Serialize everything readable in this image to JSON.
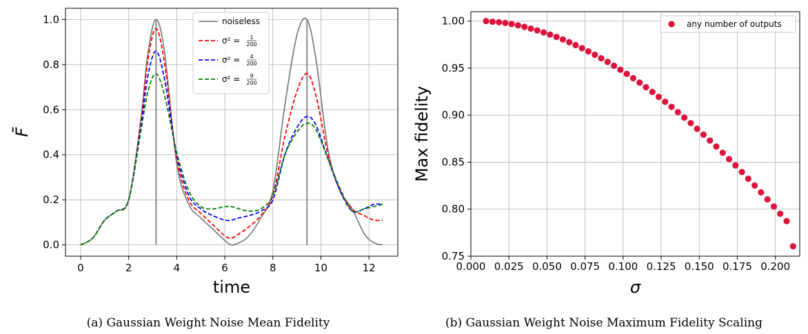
{
  "captions": {
    "a": "(a) Gaussian Weight Noise Mean Fidelity",
    "b": "(b) Gaussian Weight Noise Maximum Fidelity Scaling"
  },
  "chart_data": [
    {
      "type": "line",
      "xlabel": "time",
      "ylabel": "F̄",
      "xlim": [
        -0.63,
        13.2
      ],
      "ylim": [
        -0.05,
        1.05
      ],
      "xticks": [
        "0",
        "2",
        "4",
        "6",
        "8",
        "10",
        "12"
      ],
      "yticks": [
        "0.0",
        "0.2",
        "0.4",
        "0.6",
        "0.8",
        "1.0"
      ],
      "grid": true,
      "legend_position": "top-center",
      "vertical_lines_x": [
        3.14,
        9.42
      ],
      "series": [
        {
          "name": "noiseless",
          "style": "solid",
          "color": "#808080",
          "x": [
            0,
            0.5,
            1.0,
            1.5,
            2.0,
            2.5,
            2.8,
            3.14,
            3.5,
            4.0,
            4.5,
            5.0,
            5.5,
            6.0,
            6.28,
            6.6,
            7.0,
            7.5,
            8.0,
            8.5,
            9.0,
            9.42,
            9.8,
            10.3,
            10.8,
            11.3,
            11.8,
            12.2,
            12.57
          ],
          "y": [
            0,
            0.03,
            0.11,
            0.15,
            0.2,
            0.55,
            0.85,
            1.0,
            0.85,
            0.36,
            0.18,
            0.12,
            0.07,
            0.02,
            0.0,
            0.01,
            0.04,
            0.12,
            0.24,
            0.62,
            0.93,
            1.0,
            0.82,
            0.42,
            0.24,
            0.16,
            0.05,
            0.01,
            0.0
          ]
        },
        {
          "name": "σ² = 1/200",
          "name_fraction": {
            "num": "1",
            "den": "200"
          },
          "style": "dashed",
          "color": "#ff0000",
          "x": [
            0,
            0.5,
            1.0,
            1.5,
            2.0,
            2.5,
            2.8,
            3.14,
            3.5,
            4.0,
            4.5,
            5.0,
            5.5,
            6.0,
            6.28,
            6.6,
            7.0,
            7.5,
            8.0,
            8.5,
            9.0,
            9.42,
            9.8,
            10.3,
            10.8,
            11.3,
            11.8,
            12.2,
            12.57
          ],
          "y": [
            0,
            0.03,
            0.11,
            0.15,
            0.2,
            0.54,
            0.82,
            0.96,
            0.8,
            0.38,
            0.2,
            0.14,
            0.09,
            0.04,
            0.03,
            0.05,
            0.08,
            0.13,
            0.22,
            0.48,
            0.68,
            0.76,
            0.66,
            0.4,
            0.24,
            0.16,
            0.13,
            0.11,
            0.11
          ]
        },
        {
          "name": "σ² = 4/200",
          "name_fraction": {
            "num": "4",
            "den": "200"
          },
          "style": "dashed",
          "color": "#0000ff",
          "x": [
            0,
            0.5,
            1.0,
            1.5,
            2.0,
            2.5,
            2.8,
            3.14,
            3.5,
            4.0,
            4.5,
            5.0,
            5.5,
            6.0,
            6.28,
            6.6,
            7.0,
            7.5,
            8.0,
            8.5,
            9.0,
            9.42,
            9.8,
            10.3,
            10.8,
            11.3,
            11.8,
            12.2,
            12.57
          ],
          "y": [
            0,
            0.03,
            0.11,
            0.15,
            0.2,
            0.52,
            0.75,
            0.86,
            0.73,
            0.4,
            0.22,
            0.16,
            0.13,
            0.11,
            0.11,
            0.12,
            0.13,
            0.15,
            0.2,
            0.4,
            0.52,
            0.57,
            0.53,
            0.38,
            0.24,
            0.15,
            0.16,
            0.18,
            0.18
          ]
        },
        {
          "name": "σ² = 9/200",
          "name_fraction": {
            "num": "9",
            "den": "200"
          },
          "style": "dashed",
          "color": "#008000",
          "x": [
            0,
            0.5,
            1.0,
            1.5,
            2.0,
            2.5,
            2.8,
            3.14,
            3.5,
            4.0,
            4.5,
            5.0,
            5.5,
            6.0,
            6.28,
            6.6,
            7.0,
            7.5,
            8.0,
            8.5,
            9.0,
            9.42,
            9.8,
            10.3,
            10.8,
            11.3,
            11.8,
            12.2,
            12.57
          ],
          "y": [
            0,
            0.03,
            0.11,
            0.15,
            0.2,
            0.5,
            0.68,
            0.76,
            0.66,
            0.41,
            0.24,
            0.17,
            0.16,
            0.17,
            0.17,
            0.16,
            0.15,
            0.16,
            0.22,
            0.4,
            0.5,
            0.54,
            0.51,
            0.38,
            0.25,
            0.15,
            0.16,
            0.17,
            0.18
          ]
        }
      ]
    },
    {
      "type": "scatter",
      "xlabel": "σ",
      "ylabel": "Max fidelity",
      "xlim": [
        0,
        0.216
      ],
      "ylim": [
        0.75,
        1.01
      ],
      "xticks": [
        "0.000",
        "0.025",
        "0.050",
        "0.075",
        "0.100",
        "0.125",
        "0.150",
        "0.175",
        "0.200"
      ],
      "yticks": [
        "0.75",
        "0.80",
        "0.85",
        "0.90",
        "0.95",
        "1.00"
      ],
      "grid": true,
      "legend_position": "top-right",
      "series": [
        {
          "name": "any number of outputs",
          "color": "#dc143c",
          "x": [
            0.01,
            0.0142,
            0.0184,
            0.0226,
            0.0268,
            0.031,
            0.0352,
            0.0394,
            0.0436,
            0.0478,
            0.052,
            0.0562,
            0.0604,
            0.0646,
            0.0688,
            0.073,
            0.0772,
            0.0814,
            0.0856,
            0.0898,
            0.094,
            0.0982,
            0.1024,
            0.1066,
            0.1108,
            0.115,
            0.1192,
            0.1234,
            0.1276,
            0.1318,
            0.136,
            0.1402,
            0.1444,
            0.1486,
            0.1528,
            0.157,
            0.1612,
            0.1654,
            0.1696,
            0.1738,
            0.178,
            0.1822,
            0.1864,
            0.1906,
            0.1948,
            0.199,
            0.2032,
            0.2074,
            0.2116
          ],
          "y": [
            1.0,
            0.9994,
            0.9988,
            0.998,
            0.9969,
            0.9955,
            0.9939,
            0.9921,
            0.9901,
            0.988,
            0.9857,
            0.9832,
            0.9805,
            0.9776,
            0.9745,
            0.9712,
            0.9678,
            0.9642,
            0.9605,
            0.9566,
            0.9525,
            0.9483,
            0.9439,
            0.9393,
            0.9346,
            0.9297,
            0.9247,
            0.9195,
            0.9142,
            0.9088,
            0.9032,
            0.8974,
            0.8915,
            0.8855,
            0.8793,
            0.873,
            0.8666,
            0.86,
            0.8533,
            0.8465,
            0.8395,
            0.8324,
            0.8252,
            0.8179,
            0.8104,
            0.8028,
            0.7951,
            0.7873,
            0.7605
          ]
        }
      ]
    }
  ]
}
